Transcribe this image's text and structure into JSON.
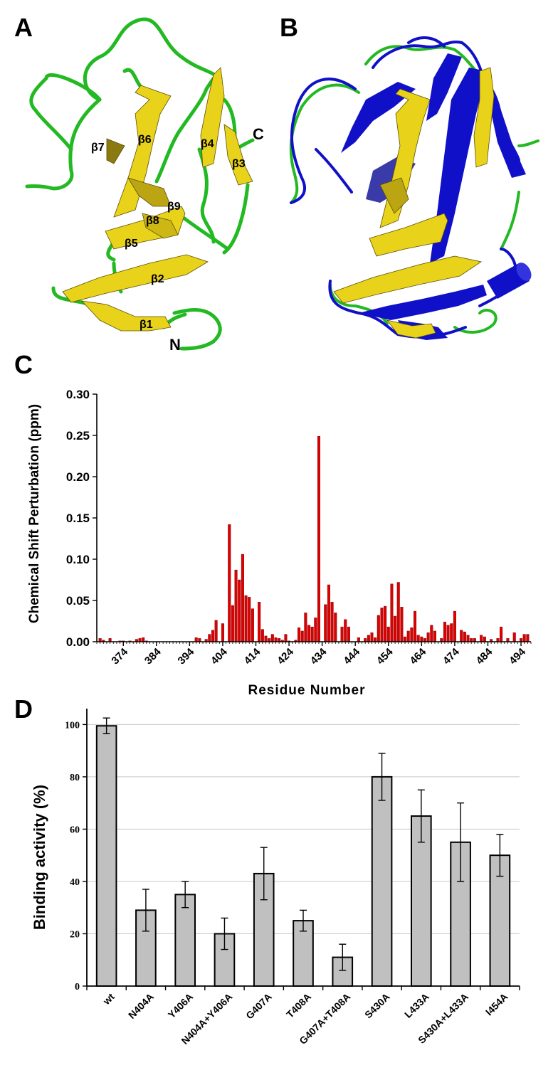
{
  "panels": {
    "a": "A",
    "b": "B",
    "c": "C",
    "d": "D"
  },
  "structure_a": {
    "labels": [
      "β1",
      "β2",
      "β3",
      "β4",
      "β5",
      "β6",
      "β7",
      "β8",
      "β9"
    ],
    "terminus_n": "N",
    "terminus_c": "C",
    "colors": {
      "loop": "#22b922",
      "strand": "#e8d21a",
      "strand_dark": "#7d6e0a"
    }
  },
  "structure_b": {
    "colors": {
      "loop": "#22b922",
      "strand": "#e8d21a",
      "overlay": "#1010c8"
    }
  },
  "chart_data": [
    {
      "type": "bar",
      "panel": "C",
      "xlabel": "Residue Number",
      "ylabel": "Chemical Shift Perturbation (ppm)",
      "ylim": [
        0,
        0.3
      ],
      "yticks": [
        "0.00",
        "0.05",
        "0.10",
        "0.15",
        "0.20",
        "0.25",
        "0.30"
      ],
      "xtick_labels": [
        "374",
        "384",
        "394",
        "404",
        "414",
        "424",
        "434",
        "444",
        "454",
        "464",
        "474",
        "484",
        "494"
      ],
      "xtick_values": [
        374,
        384,
        394,
        404,
        414,
        424,
        434,
        444,
        454,
        464,
        474,
        484,
        494
      ],
      "xlim": [
        366,
        497
      ],
      "grid": false,
      "bar_color": "#dd0000",
      "x": [
        367,
        368,
        369,
        370,
        371,
        372,
        373,
        374,
        375,
        376,
        377,
        378,
        379,
        380,
        381,
        382,
        383,
        384,
        385,
        386,
        387,
        388,
        389,
        390,
        391,
        392,
        393,
        394,
        395,
        396,
        397,
        398,
        399,
        400,
        401,
        402,
        403,
        404,
        405,
        406,
        407,
        408,
        409,
        410,
        411,
        412,
        413,
        414,
        415,
        416,
        417,
        418,
        419,
        420,
        421,
        422,
        423,
        424,
        425,
        426,
        427,
        428,
        429,
        430,
        431,
        432,
        433,
        434,
        435,
        436,
        437,
        438,
        439,
        440,
        441,
        442,
        443,
        444,
        445,
        446,
        447,
        448,
        449,
        450,
        451,
        452,
        453,
        454,
        455,
        456,
        457,
        458,
        459,
        460,
        461,
        462,
        463,
        464,
        465,
        466,
        467,
        468,
        469,
        470,
        471,
        472,
        473,
        474,
        475,
        476,
        477,
        478,
        479,
        480,
        481,
        482,
        483,
        484,
        485,
        486,
        487,
        488,
        489,
        490,
        491,
        492,
        493,
        494,
        495,
        496
      ],
      "values": [
        0.004,
        0.002,
        0.0,
        0.004,
        0.0,
        0.0,
        0.001,
        0.001,
        0.0,
        0.001,
        0.0,
        0.003,
        0.004,
        0.005,
        0.001,
        0.0,
        0.0,
        0.0,
        0.0,
        0.0,
        0.0,
        0.0,
        0.0,
        0.0,
        0.0,
        0.0,
        0.0,
        0.0,
        0.0,
        0.005,
        0.004,
        0.0,
        0.003,
        0.009,
        0.014,
        0.026,
        0.0,
        0.022,
        0.0,
        0.142,
        0.044,
        0.087,
        0.075,
        0.106,
        0.056,
        0.054,
        0.04,
        0.0,
        0.048,
        0.015,
        0.007,
        0.004,
        0.009,
        0.005,
        0.004,
        0.002,
        0.009,
        0.001,
        0.0,
        0.002,
        0.017,
        0.013,
        0.035,
        0.02,
        0.018,
        0.029,
        0.249,
        0.0,
        0.045,
        0.069,
        0.048,
        0.035,
        0.0,
        0.018,
        0.027,
        0.018,
        0.0,
        0.0,
        0.005,
        0.0,
        0.004,
        0.008,
        0.011,
        0.005,
        0.032,
        0.041,
        0.043,
        0.018,
        0.07,
        0.031,
        0.072,
        0.042,
        0.006,
        0.013,
        0.017,
        0.037,
        0.008,
        0.006,
        0.004,
        0.011,
        0.02,
        0.013,
        0.0,
        0.004,
        0.024,
        0.02,
        0.022,
        0.037,
        0.0,
        0.014,
        0.012,
        0.008,
        0.004,
        0.004,
        0.0,
        0.008,
        0.006,
        0.0,
        0.003,
        0.0,
        0.004,
        0.018,
        0.0,
        0.004,
        0.0,
        0.011,
        0.0,
        0.004,
        0.009,
        0.009
      ]
    },
    {
      "type": "bar",
      "panel": "D",
      "xlabel": "",
      "ylabel": "Binding activity (%)",
      "ylim": [
        0,
        105
      ],
      "yticks": [
        "0",
        "20",
        "40",
        "60",
        "80",
        "100"
      ],
      "grid": true,
      "bar_color": "#c0c0c0",
      "categories": [
        "wt",
        "N404A",
        "Y406A",
        "N404A+Y406A",
        "G407A",
        "T408A",
        "G407A+T408A",
        "S430A",
        "L433A",
        "S430A+L433A",
        "I454A"
      ],
      "values": [
        99.5,
        29,
        35,
        20,
        43,
        25,
        11,
        80,
        65,
        55,
        50
      ],
      "errors": [
        3,
        8,
        5,
        6,
        10,
        4,
        5,
        9,
        10,
        15,
        8
      ]
    }
  ]
}
